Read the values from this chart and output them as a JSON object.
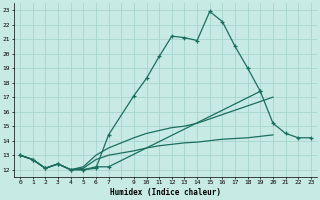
{
  "bg_color": "#c8eae4",
  "grid_color": "#a8d4ce",
  "line_color": "#1a6e60",
  "xlabel": "Humidex (Indice chaleur)",
  "xlim": [
    -0.5,
    23.5
  ],
  "ylim": [
    11.5,
    23.5
  ],
  "yticks": [
    12,
    13,
    14,
    15,
    16,
    17,
    18,
    19,
    20,
    21,
    22,
    23
  ],
  "series": [
    {
      "x": [
        0,
        1,
        2,
        3,
        4,
        5,
        6,
        7,
        9,
        10,
        11,
        12,
        13,
        14,
        15,
        16,
        17,
        18,
        19
      ],
      "y": [
        13,
        12.7,
        12.1,
        12.4,
        12.0,
        12.0,
        12.1,
        14.4,
        17.1,
        18.3,
        19.8,
        21.2,
        21.1,
        20.9,
        22.9,
        22.2,
        20.5,
        19.0,
        17.4
      ],
      "marker": true
    },
    {
      "x": [
        0,
        1,
        2,
        3,
        4,
        5,
        6,
        7,
        9,
        10,
        11,
        12,
        13,
        14,
        15,
        16,
        17,
        18,
        19,
        20,
        21,
        22,
        23
      ],
      "y": [
        13,
        12.7,
        12.1,
        12.4,
        12.0,
        12.2,
        13.0,
        13.5,
        14.2,
        14.5,
        14.7,
        14.9,
        15.0,
        15.2,
        15.5,
        15.8,
        16.1,
        16.4,
        16.7,
        17.0,
        null,
        null,
        null
      ],
      "marker": false
    },
    {
      "x": [
        0,
        1,
        2,
        3,
        4,
        5,
        6,
        7,
        9,
        10,
        11,
        12,
        13,
        14,
        15,
        16,
        17,
        18,
        19,
        20,
        21,
        22,
        23
      ],
      "y": [
        13,
        12.7,
        12.1,
        12.4,
        12.0,
        12.1,
        12.7,
        13.0,
        13.3,
        13.5,
        13.65,
        13.75,
        13.85,
        13.9,
        14.0,
        14.1,
        14.15,
        14.2,
        14.3,
        14.4,
        null,
        null,
        null
      ],
      "marker": false
    },
    {
      "x": [
        0,
        1,
        2,
        3,
        4,
        5,
        6,
        7,
        19,
        20,
        21,
        22,
        23
      ],
      "y": [
        13,
        12.7,
        12.1,
        12.4,
        12.0,
        12.0,
        12.2,
        12.2,
        17.4,
        15.2,
        14.5,
        14.2,
        14.2
      ],
      "marker": true
    }
  ]
}
